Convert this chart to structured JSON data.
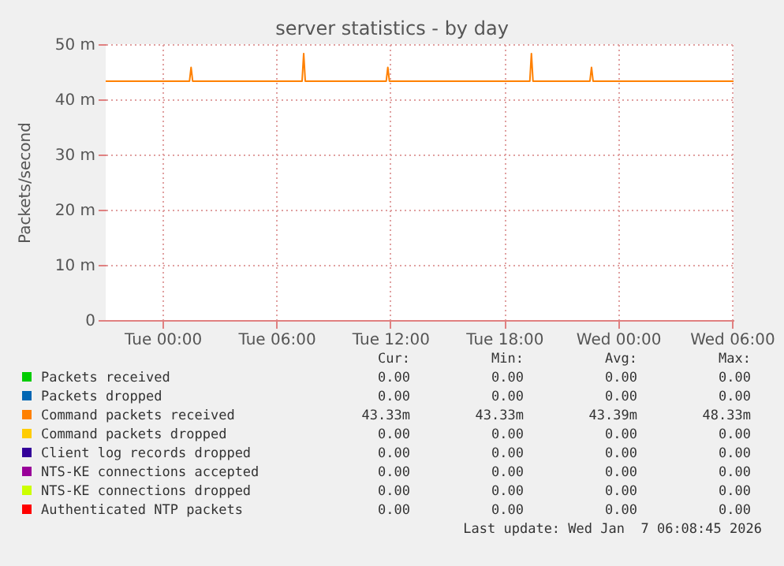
{
  "chart_data": {
    "type": "line",
    "title": "server statistics - by day",
    "ylabel": "Packets/second",
    "xlim": [
      "2026-01-05T21:00",
      "2026-01-07T06:05"
    ],
    "xticks": [
      {
        "value": "2026-01-06T00:00",
        "label": "Tue 00:00"
      },
      {
        "value": "2026-01-06T06:00",
        "label": "Tue 06:00"
      },
      {
        "value": "2026-01-06T12:00",
        "label": "Tue 12:00"
      },
      {
        "value": "2026-01-06T18:00",
        "label": "Tue 18:00"
      },
      {
        "value": "2026-01-07T00:00",
        "label": "Wed 00:00"
      },
      {
        "value": "2026-01-07T06:00",
        "label": "Wed 06:00"
      }
    ],
    "ylim": [
      0,
      50
    ],
    "yticks": [
      0,
      {
        "value": 10,
        "label": "10 m"
      },
      {
        "value": 20,
        "label": "20 m"
      },
      {
        "value": 30,
        "label": "30 m"
      },
      {
        "value": 40,
        "label": "40 m"
      },
      {
        "value": 50,
        "label": "50 m"
      }
    ],
    "series": [
      {
        "name": "Packets received",
        "color": "#00cc00",
        "values": [
          null,
          null
        ]
      },
      {
        "name": "Packets dropped",
        "color": "#0066b3",
        "values": [
          null,
          null
        ]
      },
      {
        "name": "Command packets received",
        "color": "#ff8000",
        "x": [
          "2026-01-05T21:00",
          "2026-01-06T01:25",
          "2026-01-06T01:30",
          "2026-01-06T01:35",
          "2026-01-06T07:21",
          "2026-01-06T07:26",
          "2026-01-06T07:31",
          "2026-01-06T11:47",
          "2026-01-06T11:52",
          "2026-01-06T11:57",
          "2026-01-06T19:21",
          "2026-01-06T19:26",
          "2026-01-06T19:31",
          "2026-01-06T22:31",
          "2026-01-06T22:36",
          "2026-01-06T22:41",
          "2026-01-07T06:05"
        ],
        "values": [
          43.3,
          43.3,
          45.8,
          43.3,
          43.3,
          48.3,
          43.3,
          43.3,
          45.8,
          43.3,
          43.3,
          48.3,
          43.3,
          43.3,
          45.8,
          43.3,
          43.3
        ]
      },
      {
        "name": "Command packets dropped",
        "color": "#ffcc00",
        "values": [
          null,
          null
        ]
      },
      {
        "name": "Client log records dropped",
        "color": "#330099",
        "values": [
          null,
          null
        ]
      },
      {
        "name": "NTS-KE connections accepted",
        "color": "#990099",
        "values": [
          null,
          null
        ]
      },
      {
        "name": "NTS-KE connections dropped",
        "color": "#ccff00",
        "values": [
          null,
          null
        ]
      },
      {
        "name": "Authenticated NTP packets",
        "color": "#ff0000",
        "values": [
          null,
          null
        ]
      }
    ],
    "grid": true,
    "legend": "bottom",
    "annotations": [
      "Cur:",
      "Min:",
      "Avg:",
      "Max:",
      "0.00",
      "0.00",
      "0.00",
      "0.00",
      "0.00",
      "0.00",
      "0.00",
      "0.00",
      "43.33m",
      "43.33m",
      "43.39m",
      "48.33m",
      "0.00",
      "0.00",
      "0.00",
      "0.00",
      "0.00",
      "0.00",
      "0.00",
      "0.00",
      "0.00",
      "0.00",
      "0.00",
      "0.00",
      "0.00",
      "0.00",
      "0.00",
      "0.00",
      "0.00",
      "0.00",
      "0.00",
      "0.00",
      "Last update: Wed Jan  7 06:08:45 2026"
    ]
  }
}
